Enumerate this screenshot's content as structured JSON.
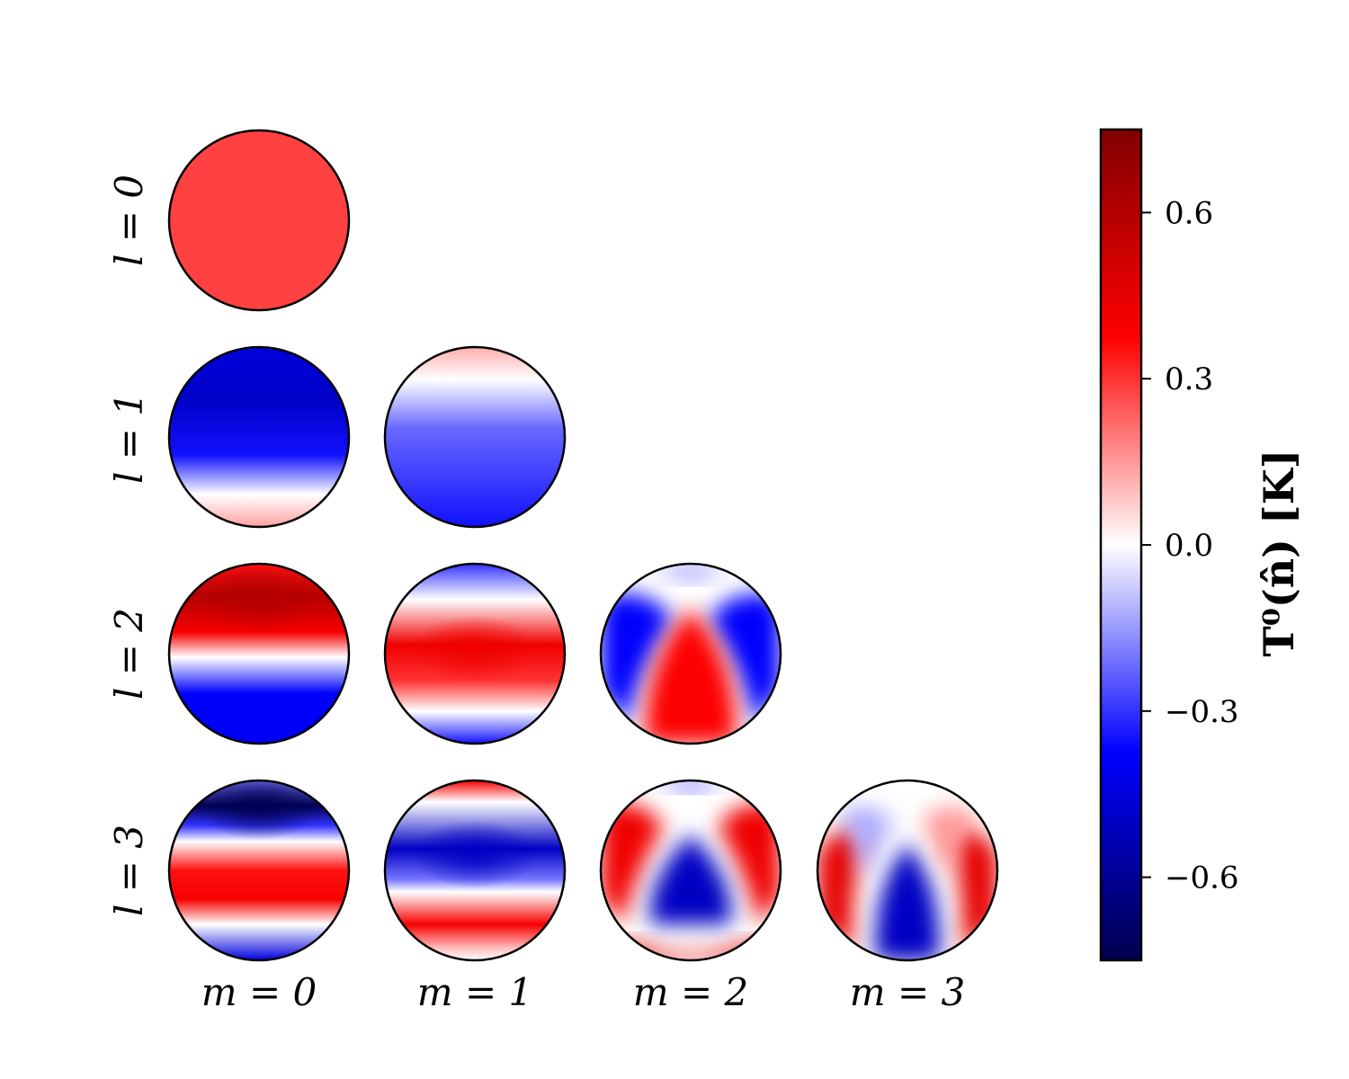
{
  "chart_data": {
    "type": "heatmap",
    "title": "",
    "row_labels": [
      "l = 0",
      "l = 1",
      "l = 2",
      "l = 3"
    ],
    "col_labels": [
      "m = 0",
      "m = 1",
      "m = 2",
      "m = 3"
    ],
    "colormap": "seismic",
    "colormap_stops": [
      "#00004c",
      "#0000ff",
      "#ffffff",
      "#ff0000",
      "#800000"
    ],
    "vmin": -0.75,
    "vmax": 0.75,
    "colorbar": {
      "label": "T⁰(n̂) [K]",
      "ticks": [
        -0.6,
        -0.3,
        0.0,
        0.3,
        0.6
      ],
      "tick_labels": [
        "−0.6",
        "−0.3",
        "0.0",
        "0.3",
        "0.6"
      ]
    },
    "panels": [
      {
        "l": 0,
        "m": 0,
        "extremes": [
          0.28,
          0.28
        ],
        "description_key": "uniform"
      },
      {
        "l": 1,
        "m": 0,
        "extremes": [
          -0.49,
          0.14
        ]
      },
      {
        "l": 1,
        "m": 1,
        "extremes": [
          -0.35,
          0.12
        ]
      },
      {
        "l": 2,
        "m": 0,
        "extremes": [
          -0.4,
          0.6
        ]
      },
      {
        "l": 2,
        "m": 1,
        "extremes": [
          -0.35,
          0.42
        ]
      },
      {
        "l": 2,
        "m": 2,
        "extremes": [
          -0.4,
          0.4
        ]
      },
      {
        "l": 3,
        "m": 0,
        "extremes": [
          -0.74,
          0.4
        ]
      },
      {
        "l": 3,
        "m": 1,
        "extremes": [
          -0.5,
          0.4
        ]
      },
      {
        "l": 3,
        "m": 2,
        "extremes": [
          -0.5,
          0.45
        ]
      },
      {
        "l": 3,
        "m": 3,
        "extremes": [
          -0.5,
          0.45
        ]
      }
    ]
  }
}
